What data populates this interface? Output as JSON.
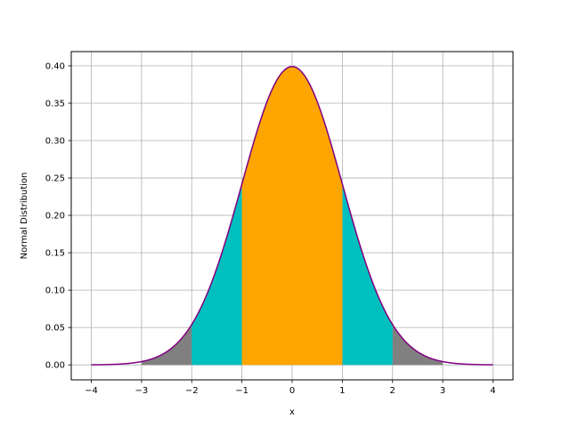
{
  "chart_data": {
    "type": "area",
    "title": "",
    "xlabel": "x",
    "ylabel": "Normal Distribution",
    "xlim": [
      -4.4,
      4.4
    ],
    "ylim": [
      -0.02,
      0.419
    ],
    "xticks": [
      -4,
      -3,
      -2,
      -1,
      0,
      1,
      2,
      3,
      4
    ],
    "xtick_labels": [
      "−4",
      "−3",
      "−2",
      "−1",
      "0",
      "1",
      "2",
      "3",
      "4"
    ],
    "yticks": [
      0.0,
      0.05,
      0.1,
      0.15,
      0.2,
      0.25,
      0.3,
      0.35,
      0.4
    ],
    "ytick_labels": [
      "0.00",
      "0.05",
      "0.10",
      "0.15",
      "0.20",
      "0.25",
      "0.30",
      "0.35",
      "0.40"
    ],
    "grid": true,
    "curve": {
      "function": "standard normal pdf",
      "mean": 0,
      "std": 1,
      "x_range": [
        -4,
        4
      ],
      "color": "#800080"
    },
    "shaded_regions": [
      {
        "x_range": [
          -3,
          -2
        ],
        "color": "#808080"
      },
      {
        "x_range": [
          2,
          3
        ],
        "color": "#808080"
      },
      {
        "x_range": [
          -2,
          -1
        ],
        "color": "#00bfbf"
      },
      {
        "x_range": [
          1,
          2
        ],
        "color": "#00bfbf"
      },
      {
        "x_range": [
          -1,
          1
        ],
        "color": "#ffa500"
      }
    ]
  }
}
